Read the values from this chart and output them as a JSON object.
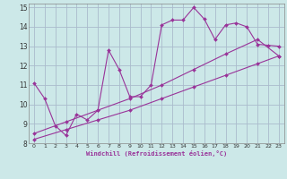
{
  "xlabel": "Windchill (Refroidissement éolien,°C)",
  "bg_color": "#cce8e8",
  "grid_color": "#aabbcc",
  "line_color": "#993399",
  "xlim": [
    -0.5,
    23.5
  ],
  "ylim": [
    8,
    15.2
  ],
  "xticks": [
    0,
    1,
    2,
    3,
    4,
    5,
    6,
    7,
    8,
    9,
    10,
    11,
    12,
    13,
    14,
    15,
    16,
    17,
    18,
    19,
    20,
    21,
    22,
    23
  ],
  "yticks": [
    8,
    9,
    10,
    11,
    12,
    13,
    14,
    15
  ],
  "line1_x": [
    0,
    1,
    2,
    3,
    4,
    5,
    6,
    7,
    8,
    9,
    10,
    11,
    12,
    13,
    14,
    15,
    16,
    17,
    18,
    19,
    20,
    21,
    22,
    23
  ],
  "line1_y": [
    11.1,
    10.3,
    8.9,
    8.4,
    9.5,
    9.2,
    9.7,
    12.8,
    11.8,
    10.4,
    10.4,
    11.0,
    14.1,
    14.35,
    14.35,
    15.0,
    14.4,
    13.35,
    14.1,
    14.2,
    14.0,
    13.1,
    13.05,
    13.0
  ],
  "line2_x": [
    0,
    3,
    6,
    9,
    12,
    15,
    18,
    21,
    23
  ],
  "line2_y": [
    8.5,
    9.1,
    9.7,
    10.3,
    11.0,
    11.8,
    12.6,
    13.35,
    12.5
  ],
  "line3_x": [
    0,
    3,
    6,
    9,
    12,
    15,
    18,
    21,
    23
  ],
  "line3_y": [
    8.2,
    8.7,
    9.2,
    9.7,
    10.3,
    10.9,
    11.5,
    12.1,
    12.5
  ]
}
